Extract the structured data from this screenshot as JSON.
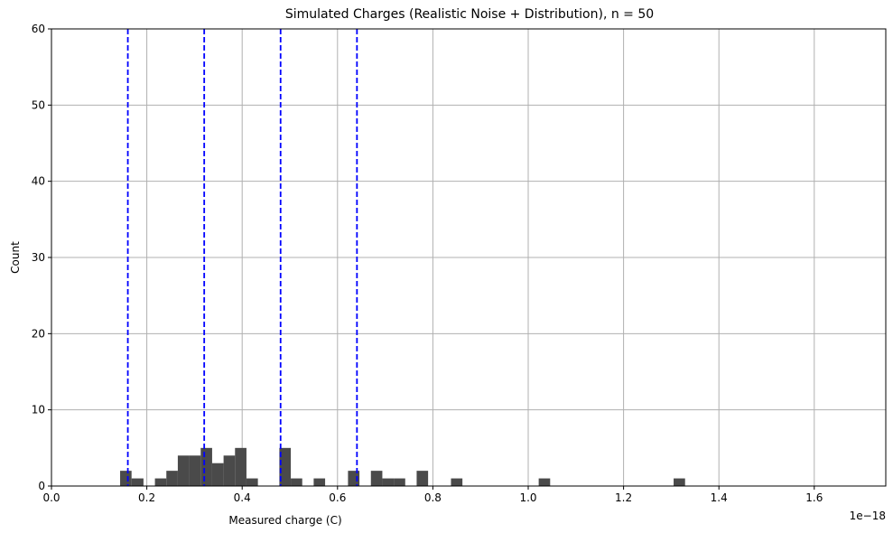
{
  "chart_data": {
    "type": "histogram",
    "title": "Simulated Charges (Realistic Noise + Distribution), n = 50",
    "xlabel": "Measured charge (C)",
    "ylabel": "Count",
    "x_offset_label": "1e−18",
    "xlim": [
      0,
      1.75
    ],
    "ylim": [
      0,
      60
    ],
    "x_ticks": [
      {
        "value": 0.0,
        "label": "0.0"
      },
      {
        "value": 0.2,
        "label": "0.2"
      },
      {
        "value": 0.4,
        "label": "0.4"
      },
      {
        "value": 0.6,
        "label": "0.6"
      },
      {
        "value": 0.8,
        "label": "0.8"
      },
      {
        "value": 1.0,
        "label": "1.0"
      },
      {
        "value": 1.2,
        "label": "1.2"
      },
      {
        "value": 1.4,
        "label": "1.4"
      },
      {
        "value": 1.6,
        "label": "1.6"
      }
    ],
    "y_ticks": [
      {
        "value": 0,
        "label": "0"
      },
      {
        "value": 10,
        "label": "10"
      },
      {
        "value": 20,
        "label": "20"
      },
      {
        "value": 30,
        "label": "30"
      },
      {
        "value": 40,
        "label": "40"
      },
      {
        "value": 50,
        "label": "50"
      },
      {
        "value": 60,
        "label": "60"
      }
    ],
    "grid": true,
    "bar_color": "#4a4a4a",
    "bins": [
      {
        "x0": 0.144,
        "x1": 0.168,
        "count": 2
      },
      {
        "x0": 0.168,
        "x1": 0.193,
        "count": 1
      },
      {
        "x0": 0.217,
        "x1": 0.241,
        "count": 1
      },
      {
        "x0": 0.241,
        "x1": 0.265,
        "count": 2
      },
      {
        "x0": 0.265,
        "x1": 0.289,
        "count": 4
      },
      {
        "x0": 0.289,
        "x1": 0.313,
        "count": 4
      },
      {
        "x0": 0.313,
        "x1": 0.337,
        "count": 5
      },
      {
        "x0": 0.337,
        "x1": 0.361,
        "count": 3
      },
      {
        "x0": 0.361,
        "x1": 0.385,
        "count": 4
      },
      {
        "x0": 0.385,
        "x1": 0.409,
        "count": 5
      },
      {
        "x0": 0.409,
        "x1": 0.433,
        "count": 1
      },
      {
        "x0": 0.478,
        "x1": 0.502,
        "count": 5
      },
      {
        "x0": 0.502,
        "x1": 0.526,
        "count": 1
      },
      {
        "x0": 0.55,
        "x1": 0.574,
        "count": 1
      },
      {
        "x0": 0.622,
        "x1": 0.646,
        "count": 2
      },
      {
        "x0": 0.67,
        "x1": 0.694,
        "count": 2
      },
      {
        "x0": 0.694,
        "x1": 0.718,
        "count": 1
      },
      {
        "x0": 0.718,
        "x1": 0.742,
        "count": 1
      },
      {
        "x0": 0.766,
        "x1": 0.79,
        "count": 2
      },
      {
        "x0": 0.838,
        "x1": 0.862,
        "count": 1
      },
      {
        "x0": 1.022,
        "x1": 1.046,
        "count": 1
      },
      {
        "x0": 1.305,
        "x1": 1.329,
        "count": 1
      }
    ],
    "reference_lines": {
      "color": "#0000ff",
      "style": "dashed",
      "x": [
        0.1602,
        0.3204,
        0.4806,
        0.6408
      ]
    }
  }
}
